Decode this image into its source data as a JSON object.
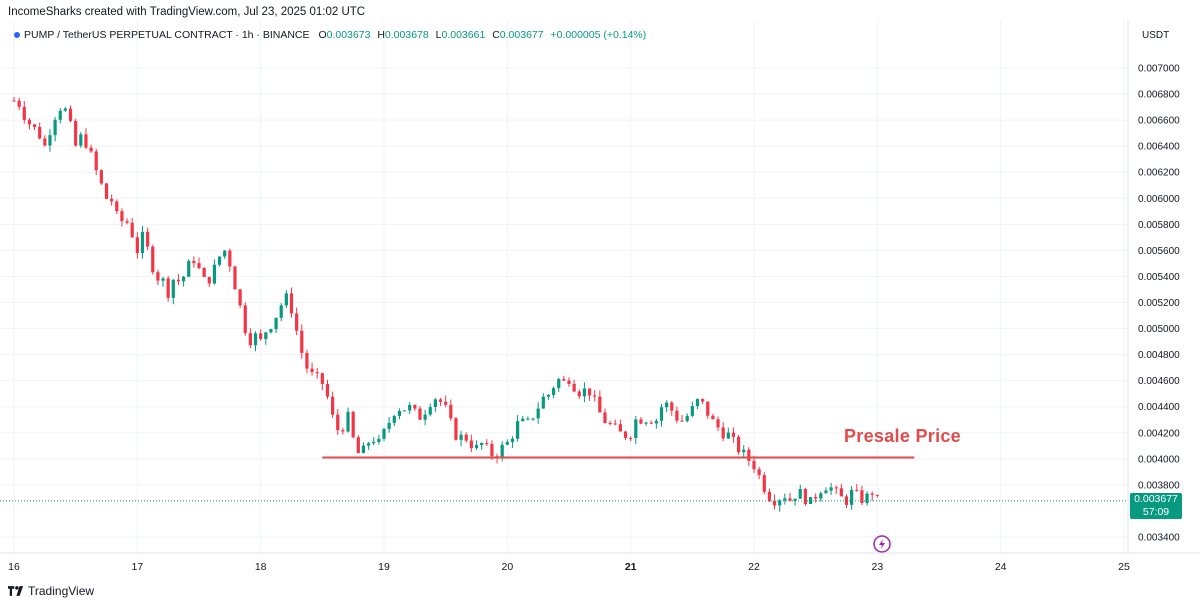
{
  "header": {
    "credit": "IncomeSharks created with TradingView.com, Jul 23, 2025 01:02 UTC"
  },
  "legend": {
    "symbol": "PUMP / TetherUS PERPETUAL CONTRACT · 1h · BINANCE",
    "o_label": "O",
    "o_value": "0.003673",
    "h_label": "H",
    "h_value": "0.003678",
    "l_label": "L",
    "l_value": "0.003661",
    "c_label": "C",
    "c_value": "0.003677",
    "change": "+0.000005 (+0.14%)"
  },
  "axis": {
    "unit": "USDT"
  },
  "last_price": {
    "price": "0.003677",
    "countdown": "57:09"
  },
  "annotation": {
    "text": "Presale Price",
    "level": 0.00401,
    "from_day": 18.5,
    "to_day": 23.3
  },
  "brand": {
    "name": "TradingView"
  },
  "colors": {
    "up": "#089981",
    "down": "#f23645",
    "annotation": "#e24b4b",
    "grid": "#f0f3fa"
  },
  "chart_data": {
    "type": "candlestick",
    "title": "",
    "xlabel": "",
    "ylabel": "",
    "ylim": [
      0.0033,
      0.0072
    ],
    "xlim": [
      16,
      25
    ],
    "x_ticks": [
      "16",
      "17",
      "18",
      "19",
      "20",
      "21",
      "22",
      "23",
      "24",
      "25"
    ],
    "y_ticks": [
      "0.007000",
      "0.006800",
      "0.006600",
      "0.006400",
      "0.006200",
      "0.006000",
      "0.005800",
      "0.005600",
      "0.005400",
      "0.005200",
      "0.005000",
      "0.004800",
      "0.004600",
      "0.004400",
      "0.004200",
      "0.004000",
      "0.003800",
      "0.003400"
    ],
    "grid": true,
    "series": [
      {
        "type": "close_path",
        "points": [
          [
            16.0,
            0.00675
          ],
          [
            16.05,
            0.00672
          ],
          [
            16.1,
            0.0066
          ],
          [
            16.15,
            0.00655
          ],
          [
            16.2,
            0.0065
          ],
          [
            16.25,
            0.0064
          ],
          [
            16.3,
            0.00655
          ],
          [
            16.35,
            0.00668
          ],
          [
            16.4,
            0.00672
          ],
          [
            16.45,
            0.00658
          ],
          [
            16.5,
            0.0064
          ],
          [
            16.55,
            0.00648
          ],
          [
            16.6,
            0.0064
          ],
          [
            16.65,
            0.00625
          ],
          [
            16.7,
            0.00612
          ],
          [
            16.75,
            0.006
          ],
          [
            16.8,
            0.00598
          ],
          [
            16.85,
            0.0058
          ],
          [
            16.9,
            0.00585
          ],
          [
            16.95,
            0.00575
          ],
          [
            17.0,
            0.0056
          ],
          [
            17.05,
            0.00572
          ],
          [
            17.1,
            0.00555
          ],
          [
            17.15,
            0.0054
          ],
          [
            17.2,
            0.00538
          ],
          [
            17.25,
            0.00528
          ],
          [
            17.3,
            0.0054
          ],
          [
            17.35,
            0.00535
          ],
          [
            17.4,
            0.00545
          ],
          [
            17.45,
            0.00555
          ],
          [
            17.5,
            0.00545
          ],
          [
            17.55,
            0.00535
          ],
          [
            17.6,
            0.0054
          ],
          [
            17.65,
            0.00552
          ],
          [
            17.7,
            0.00562
          ],
          [
            17.75,
            0.0055
          ],
          [
            17.8,
            0.0053
          ],
          [
            17.85,
            0.0051
          ],
          [
            17.9,
            0.0049
          ],
          [
            17.95,
            0.00495
          ],
          [
            18.0,
            0.0049
          ],
          [
            18.05,
            0.005
          ],
          [
            18.1,
            0.00505
          ],
          [
            18.15,
            0.00515
          ],
          [
            18.2,
            0.00525
          ],
          [
            18.25,
            0.00515
          ],
          [
            18.3,
            0.00495
          ],
          [
            18.35,
            0.00475
          ],
          [
            18.4,
            0.00465
          ],
          [
            18.45,
            0.00462
          ],
          [
            18.5,
            0.00458
          ],
          [
            18.55,
            0.00445
          ],
          [
            18.6,
            0.00425
          ],
          [
            18.65,
            0.0042
          ],
          [
            18.7,
            0.00435
          ],
          [
            18.75,
            0.00415
          ],
          [
            18.8,
            0.00402
          ],
          [
            18.85,
            0.00408
          ],
          [
            18.9,
            0.00418
          ],
          [
            18.95,
            0.0041
          ],
          [
            19.0,
            0.0042
          ],
          [
            19.05,
            0.0043
          ],
          [
            19.1,
            0.0044
          ],
          [
            19.15,
            0.00438
          ],
          [
            19.2,
            0.0044
          ],
          [
            19.25,
            0.00435
          ],
          [
            19.3,
            0.00432
          ],
          [
            19.35,
            0.0044
          ],
          [
            19.4,
            0.00448
          ],
          [
            19.45,
            0.00445
          ],
          [
            19.5,
            0.00438
          ],
          [
            19.55,
            0.00425
          ],
          [
            19.6,
            0.00415
          ],
          [
            19.65,
            0.00418
          ],
          [
            19.7,
            0.00412
          ],
          [
            19.75,
            0.00408
          ],
          [
            19.8,
            0.00412
          ],
          [
            19.85,
            0.00405
          ],
          [
            19.9,
            0.00402
          ],
          [
            19.95,
            0.00408
          ],
          [
            20.0,
            0.00412
          ],
          [
            20.05,
            0.0042
          ],
          [
            20.1,
            0.0043
          ],
          [
            20.15,
            0.00425
          ],
          [
            20.2,
            0.00432
          ],
          [
            20.25,
            0.0044
          ],
          [
            20.3,
            0.00448
          ],
          [
            20.35,
            0.0045
          ],
          [
            20.4,
            0.00462
          ],
          [
            20.45,
            0.00458
          ],
          [
            20.5,
            0.00462
          ],
          [
            20.55,
            0.00455
          ],
          [
            20.6,
            0.0045
          ],
          [
            20.65,
            0.00455
          ],
          [
            20.7,
            0.00445
          ],
          [
            20.75,
            0.00435
          ],
          [
            20.8,
            0.00428
          ],
          [
            20.85,
            0.00425
          ],
          [
            20.9,
            0.0042
          ],
          [
            20.95,
            0.00418
          ],
          [
            21.0,
            0.0042
          ],
          [
            21.05,
            0.00432
          ],
          [
            21.1,
            0.0043
          ],
          [
            21.15,
            0.00432
          ],
          [
            21.2,
            0.00428
          ],
          [
            21.25,
            0.0044
          ],
          [
            21.3,
            0.00442
          ],
          [
            21.35,
            0.00435
          ],
          [
            21.4,
            0.00428
          ],
          [
            21.45,
            0.00432
          ],
          [
            21.5,
            0.00438
          ],
          [
            21.55,
            0.00445
          ],
          [
            21.6,
            0.0044
          ],
          [
            21.65,
            0.0043
          ],
          [
            21.7,
            0.00425
          ],
          [
            21.75,
            0.0042
          ],
          [
            21.8,
            0.00418
          ],
          [
            21.85,
            0.0041
          ],
          [
            21.9,
            0.00405
          ],
          [
            21.95,
            0.004
          ],
          [
            22.0,
            0.00395
          ],
          [
            22.05,
            0.00385
          ],
          [
            22.1,
            0.00375
          ],
          [
            22.15,
            0.00368
          ],
          [
            22.2,
            0.0037
          ],
          [
            22.25,
            0.00372
          ],
          [
            22.3,
            0.00368
          ],
          [
            22.35,
            0.00375
          ],
          [
            22.4,
            0.00372
          ],
          [
            22.45,
            0.00365
          ],
          [
            22.5,
            0.00372
          ],
          [
            22.55,
            0.00378
          ],
          [
            22.6,
            0.0038
          ],
          [
            22.65,
            0.00375
          ],
          [
            22.7,
            0.0037
          ],
          [
            22.75,
            0.00368
          ],
          [
            22.8,
            0.00375
          ],
          [
            22.85,
            0.0037
          ],
          [
            22.9,
            0.00368
          ],
          [
            22.95,
            0.00376
          ],
          [
            23.0,
            0.003677
          ]
        ]
      }
    ]
  }
}
